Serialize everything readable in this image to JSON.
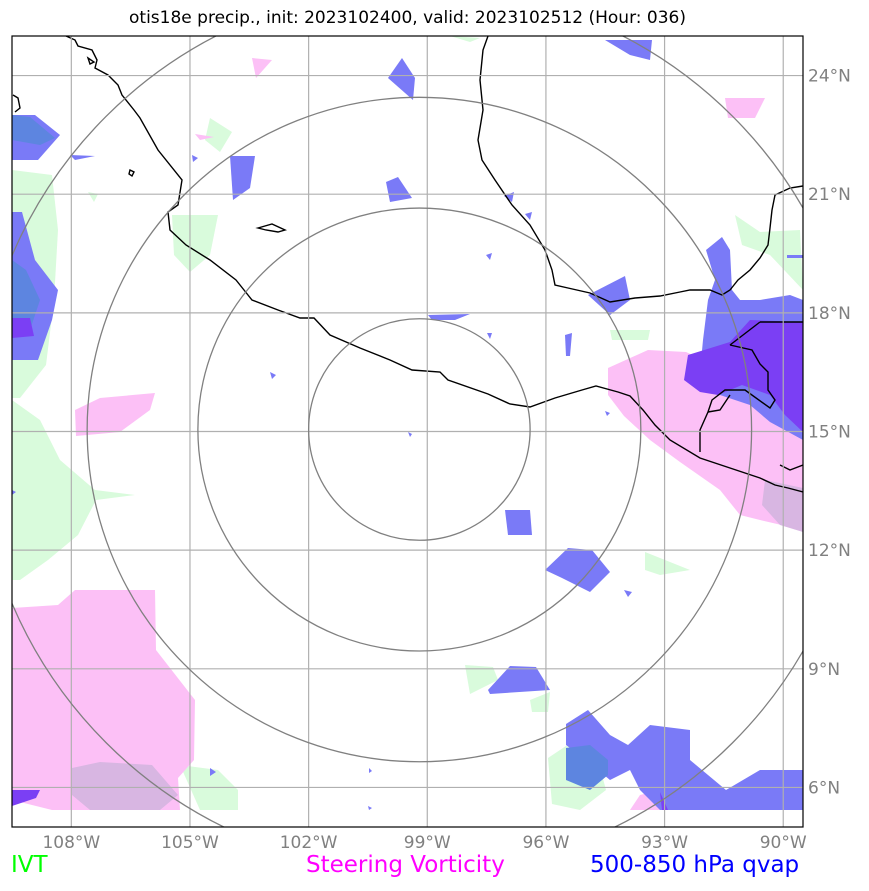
{
  "title": "otis18e precip., init: 2023102400, valid: 2023102512 (Hour: 036)",
  "map": {
    "lon_range": [
      -109.5,
      -89.5
    ],
    "lat_range": [
      5.0,
      25.0
    ],
    "grid": true,
    "lon_ticks": [
      {
        "value": -108,
        "label": "108°W"
      },
      {
        "value": -105,
        "label": "105°W"
      },
      {
        "value": -102,
        "label": "102°W"
      },
      {
        "value": -99,
        "label": "99°W"
      },
      {
        "value": -96,
        "label": "96°W"
      },
      {
        "value": -93,
        "label": "93°W"
      },
      {
        "value": -90,
        "label": "90°W"
      }
    ],
    "lat_ticks": [
      {
        "value": 6,
        "label": "6°N"
      },
      {
        "value": 9,
        "label": "9°N"
      },
      {
        "value": 12,
        "label": "12°N"
      },
      {
        "value": 15,
        "label": "15°N"
      },
      {
        "value": 18,
        "label": "18°N"
      },
      {
        "value": 21,
        "label": "21°N"
      },
      {
        "value": 24,
        "label": "24°N"
      }
    ],
    "range_rings": {
      "center": {
        "lon": -99.2,
        "lat": 15.05
      },
      "radius_deg": [
        2.8,
        5.6,
        8.4,
        11.2
      ]
    }
  },
  "legend": {
    "ivt": {
      "label": "IVT",
      "color": "#00ff00"
    },
    "vorticity": {
      "label": "Steering Vorticity",
      "color": "#ff00ff"
    },
    "qvap": {
      "label": "500-850 hPa qvap",
      "color": "#0000ff"
    }
  },
  "colors": {
    "ivt_fill": "#d9fbdc",
    "vort_fill": "#fcc0f6",
    "qvap_fill": "#7a7af7",
    "qvap_dark": "#7b3ff4",
    "vort_qvap": "#d8b6e2",
    "grid": "#b0b0b0",
    "ring": "#808080",
    "coast": "#000000",
    "tick_label": "#808080"
  }
}
